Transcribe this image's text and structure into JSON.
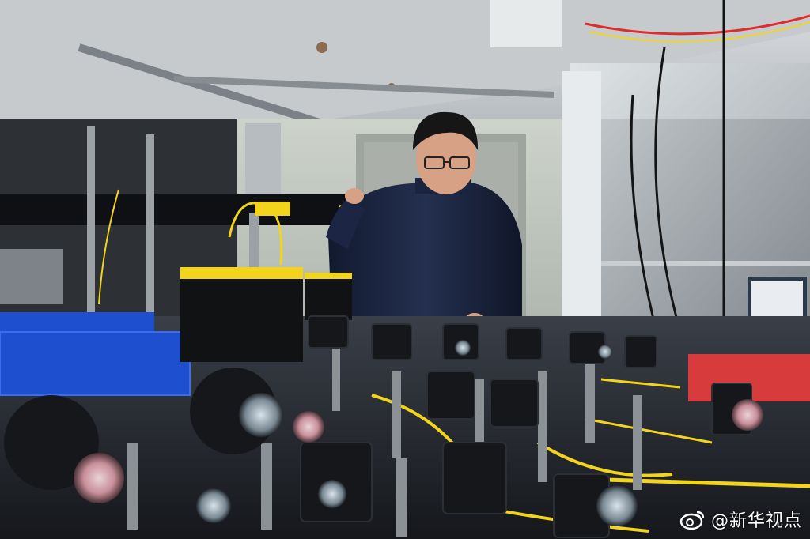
{
  "photo": {
    "colors": {
      "ceiling": "#cfd3d6",
      "wall": "#c9cfc8",
      "jacket": "#1a2440",
      "skin": "#d6a184",
      "hair": "#161616",
      "fiber_yellow": "#f2d41c",
      "blue_box": "#1d4fcf",
      "red_box": "#d83b3b",
      "metal": "#8c9196",
      "optics_black": "#15171b"
    }
  },
  "watermark": {
    "logo_icon": "weibo-icon",
    "text": "@新华视点"
  }
}
